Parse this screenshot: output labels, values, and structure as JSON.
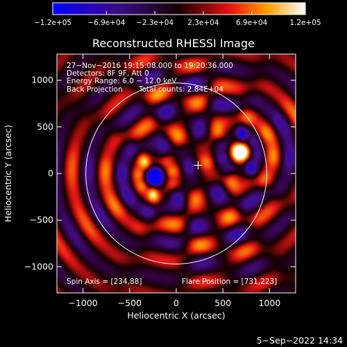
{
  "chart_data": {
    "type": "heatmap",
    "title": "Reconstructed RHESSI Image",
    "xlabel": "Heliocentric X (arcsec)",
    "ylabel": "Heliocentric Y (arcsec)",
    "xlim": [
      -1280,
      1280
    ],
    "ylim": [
      -1280,
      1280
    ],
    "xticks": [
      -1000,
      -500,
      0,
      500,
      1000
    ],
    "yticks": [
      -1000,
      -500,
      0,
      500,
      1000
    ],
    "xtick_labels": [
      "−1000",
      "−500",
      "0",
      "500",
      "1000"
    ],
    "ytick_labels": [
      "−1000",
      "−500",
      "0",
      "500",
      "1000"
    ],
    "colorbar": {
      "min": -120000,
      "max": 120000,
      "ticks": [
        -120000,
        -69000,
        -23000,
        23000,
        69000,
        120000
      ],
      "labels": [
        "−1.2e+05",
        "−6.9e+04",
        "−2.3e+04",
        "2.3e+04",
        "6.9e+04",
        "1.2e+05"
      ],
      "colormap": "blue-purple-red-yellow-white"
    },
    "info_lines": [
      "27−Nov−2016 19:15:08.000 to 19:20:36.000",
      "Detectors: 8F 9F, Att 0",
      "Energy Range: 6.0 − 12.0 keV"
    ],
    "method_label": "Back Projection",
    "counts_label": "Total counts: 2.84E+04",
    "spin_axis_label": "Spin Axis = [234,88]",
    "flare_position_label": "Flare Position = [731,223]",
    "solar_limb_radius": 970,
    "sources": [
      {
        "name": "positive",
        "x": 700,
        "y": 230,
        "peak": 120000
      },
      {
        "name": "negative",
        "x": -240,
        "y": -40,
        "peak": -120000
      }
    ],
    "spin_axis_marker": [
      234,
      88
    ]
  },
  "timestamp": "5−Sep−2022 14:34"
}
